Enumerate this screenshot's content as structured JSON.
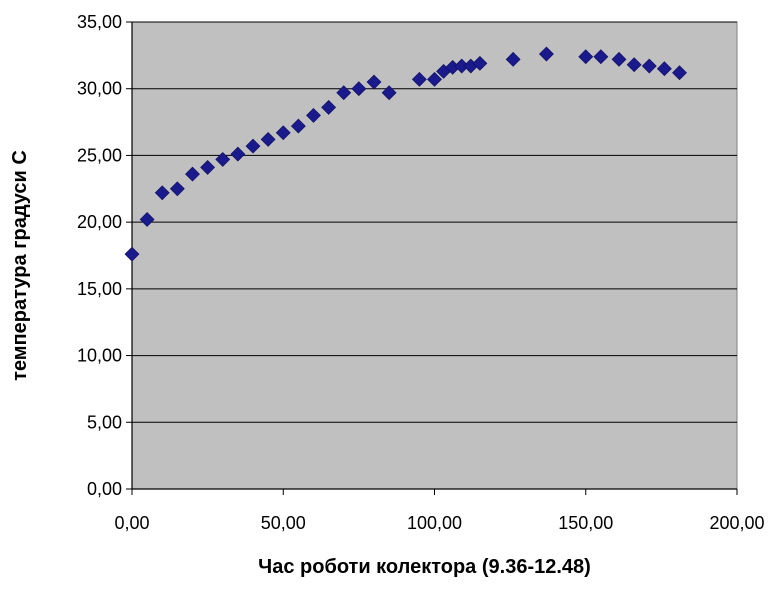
{
  "chart_data": {
    "type": "scatter",
    "title": "",
    "xlabel": "Час роботи колектора (9.36-12.48)",
    "ylabel": "температура градуси С",
    "xlim": [
      0,
      200
    ],
    "ylim": [
      0,
      35
    ],
    "x_ticks": [
      "0,00",
      "50,00",
      "100,00",
      "150,00",
      "200,00"
    ],
    "y_ticks": [
      "0,00",
      "5,00",
      "10,00",
      "15,00",
      "20,00",
      "25,00",
      "30,00",
      "35,00"
    ],
    "grid": "horizontal",
    "legend": "none",
    "colors": {
      "plot_bg": "#c0c0c0",
      "marker": "#1a1a8c",
      "gridline": "#000000"
    },
    "marker": "diamond",
    "series": [
      {
        "points": [
          [
            0,
            17.6
          ],
          [
            5,
            20.2
          ],
          [
            10,
            22.2
          ],
          [
            15,
            22.5
          ],
          [
            20,
            23.6
          ],
          [
            25,
            24.1
          ],
          [
            30,
            24.7
          ],
          [
            35,
            25.1
          ],
          [
            40,
            25.7
          ],
          [
            45,
            26.2
          ],
          [
            50,
            26.7
          ],
          [
            55,
            27.2
          ],
          [
            60,
            28.0
          ],
          [
            65,
            28.6
          ],
          [
            70,
            29.7
          ],
          [
            75,
            30.0
          ],
          [
            80,
            30.5
          ],
          [
            85,
            29.7
          ],
          [
            95,
            30.7
          ],
          [
            100,
            30.7
          ],
          [
            103,
            31.3
          ],
          [
            106,
            31.6
          ],
          [
            109,
            31.7
          ],
          [
            112,
            31.7
          ],
          [
            115,
            31.9
          ],
          [
            126,
            32.2
          ],
          [
            137,
            32.6
          ],
          [
            150,
            32.4
          ],
          [
            155,
            32.4
          ],
          [
            161,
            32.2
          ],
          [
            166,
            31.8
          ],
          [
            171,
            31.7
          ],
          [
            176,
            31.5
          ],
          [
            181,
            31.2
          ]
        ]
      }
    ]
  }
}
